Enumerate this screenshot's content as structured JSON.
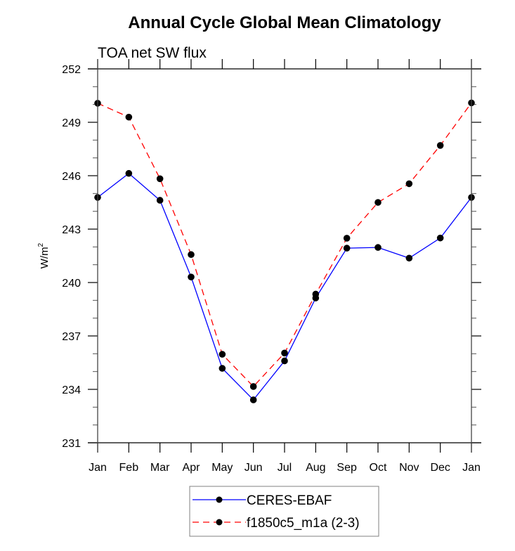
{
  "chart_data": {
    "type": "line",
    "title": "Annual Cycle Global Mean Climatology",
    "subtitle": "TOA net SW flux",
    "xlabel": "",
    "ylabel": "W/m",
    "ylabel_superscript": "2",
    "categories": [
      "Jan",
      "Feb",
      "Mar",
      "Apr",
      "May",
      "Jun",
      "Jul",
      "Aug",
      "Sep",
      "Oct",
      "Nov",
      "Dec",
      "Jan"
    ],
    "ylim": [
      231,
      252
    ],
    "yticks": [
      231,
      234,
      237,
      240,
      243,
      246,
      249,
      252
    ],
    "yminor_step": 1,
    "grid": false,
    "legend_position": "bottom-center",
    "series": [
      {
        "name": "CERES-EBAF",
        "color": "#0000ff",
        "line_style": "solid",
        "marker": "filled-circle",
        "marker_color": "#000000",
        "values": [
          244.78,
          246.13,
          244.62,
          240.31,
          235.18,
          233.41,
          235.6,
          239.13,
          241.93,
          241.97,
          241.37,
          242.5,
          244.78
        ]
      },
      {
        "name": "f1850c5_m1a (2-3)",
        "color": "#ff0000",
        "line_style": "dashed",
        "marker": "filled-circle",
        "marker_color": "#000000",
        "values": [
          250.07,
          249.29,
          245.83,
          241.57,
          235.97,
          234.16,
          236.04,
          239.35,
          242.49,
          244.5,
          245.55,
          247.7,
          250.09
        ]
      }
    ]
  }
}
